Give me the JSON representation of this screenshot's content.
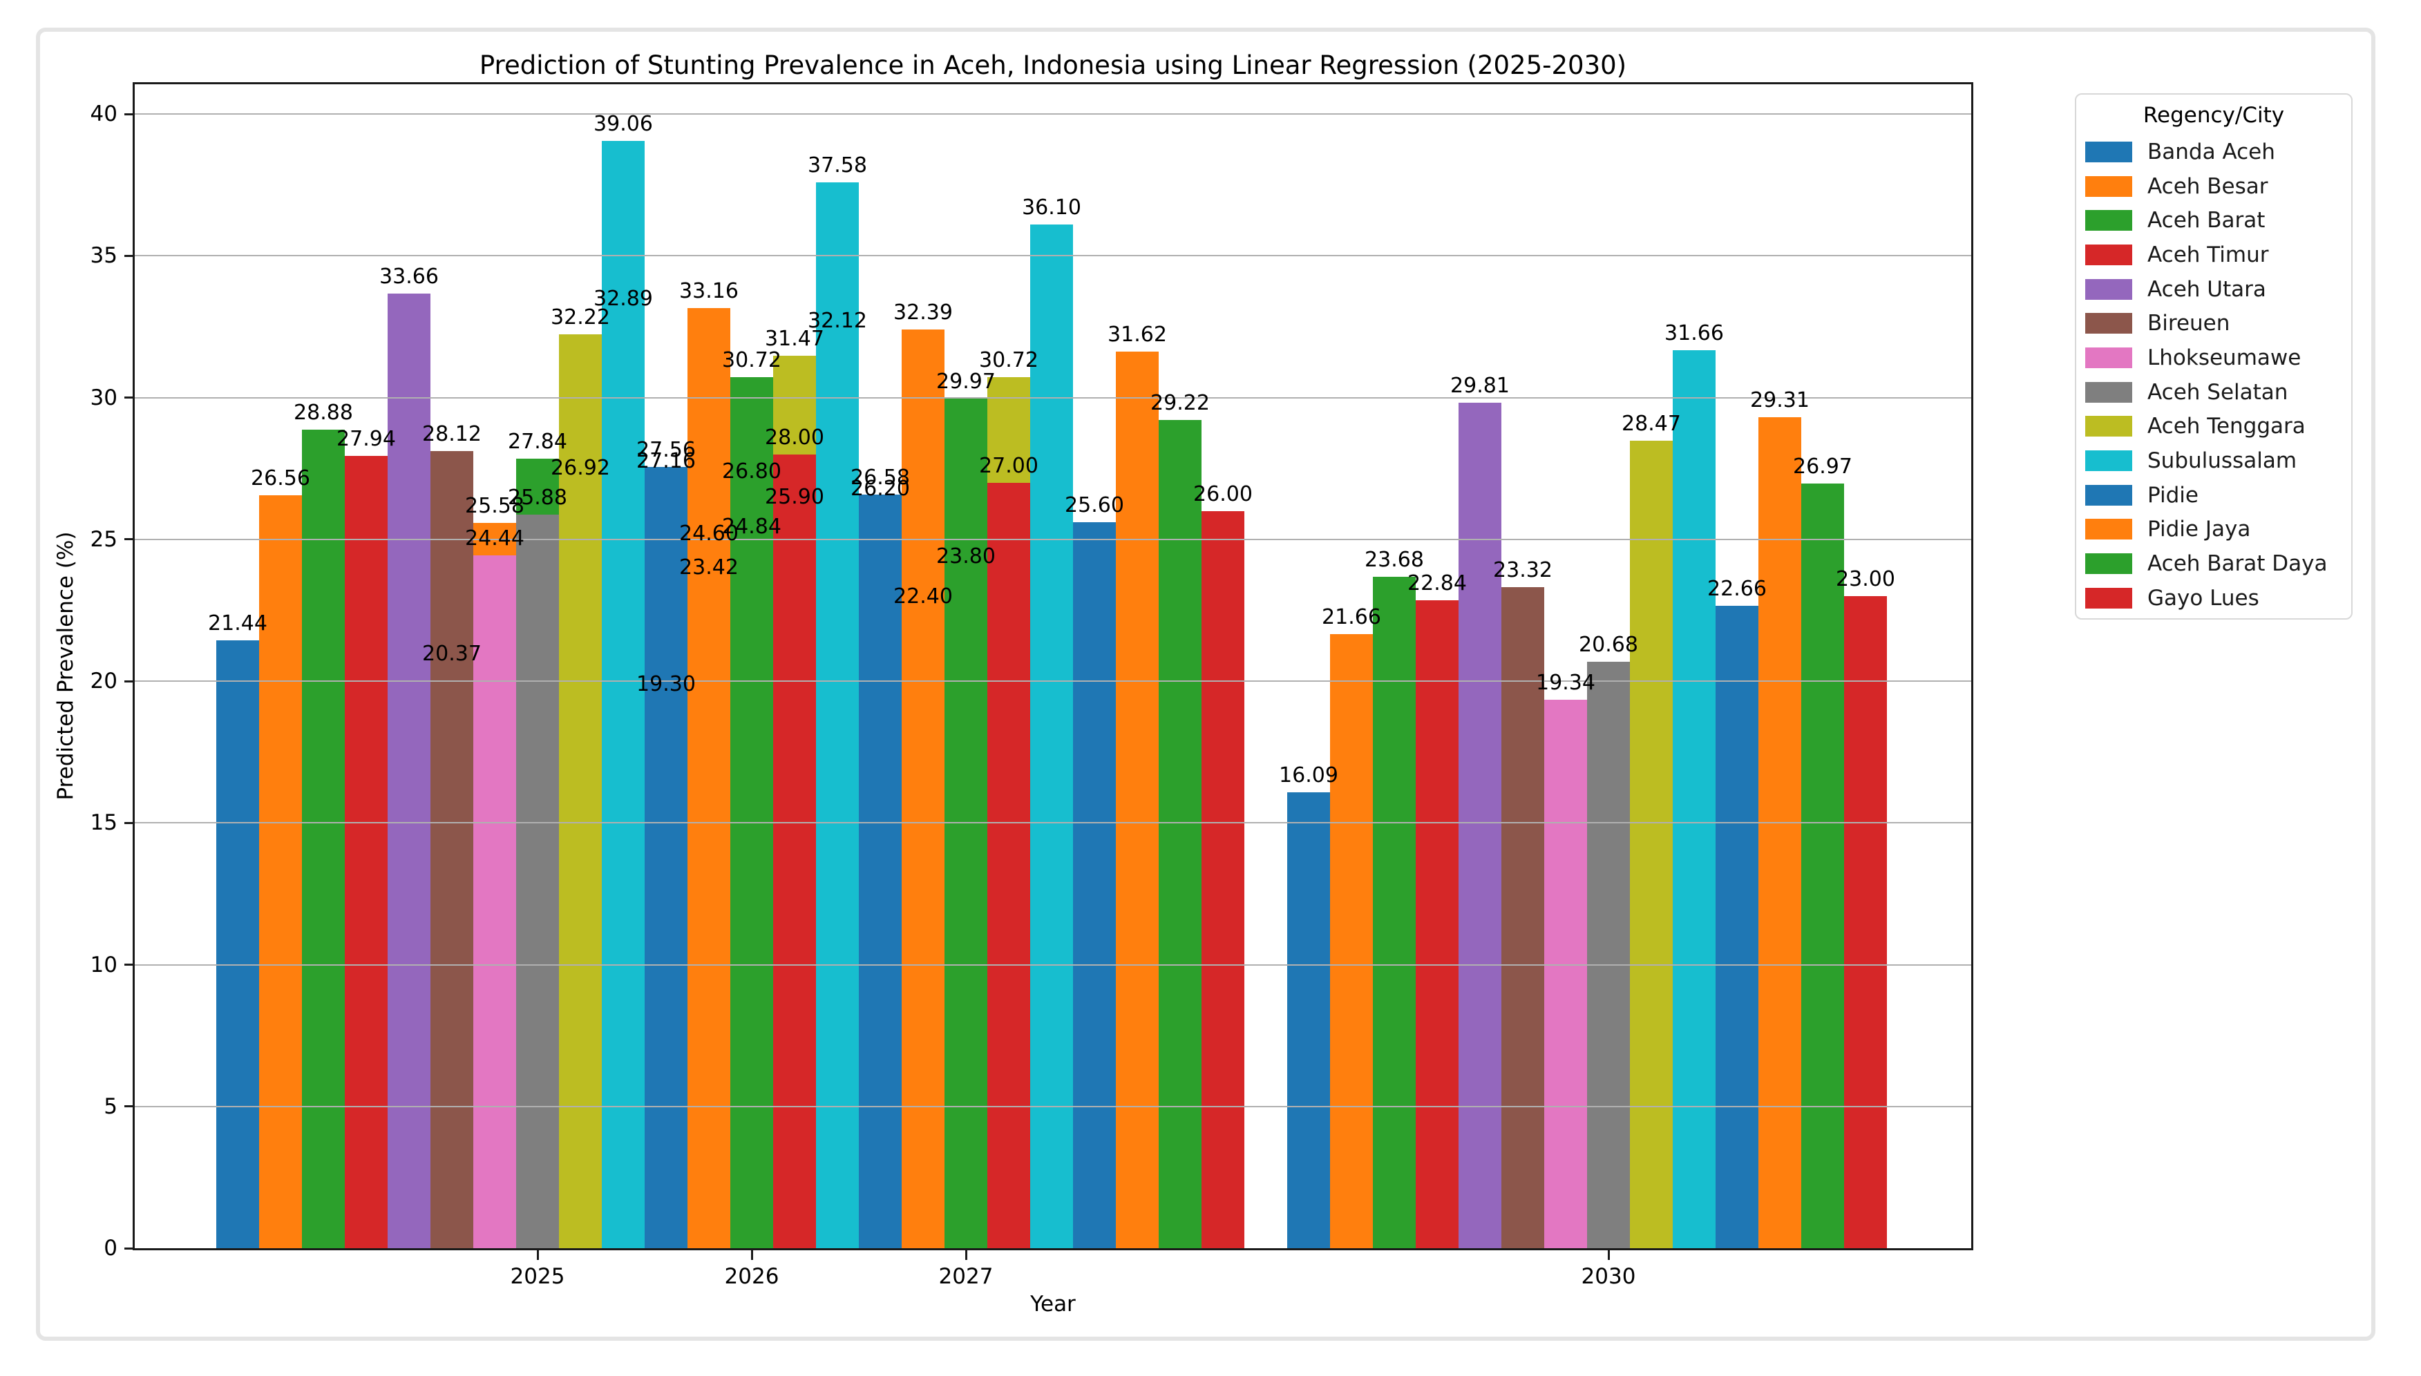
{
  "chart_data": {
    "type": "bar",
    "title": "Prediction of Stunting Prevalence in Aceh, Indonesia using Linear Regression (2025-2030)",
    "xlabel": "Year",
    "ylabel": "Predicted Prevalence (%)",
    "x": [
      2025,
      2026,
      2027,
      2030
    ],
    "xlim": [
      2023.11,
      2031.69
    ],
    "ylim": [
      0,
      41.05
    ],
    "yticks": [
      0,
      5,
      10,
      15,
      20,
      25,
      30,
      35,
      40
    ],
    "grid": "horizontal",
    "grid_color": "#b0b0b0",
    "bar_width": 0.2,
    "series_offset": "(index - 7) * 0.2 years from group year",
    "value_label_decimals": 2,
    "legend": {
      "title": "Regency/City",
      "position": "right"
    },
    "series": [
      {
        "name": "Banda Aceh",
        "color": "#1f77b4",
        "values": [
          21.44,
          20.37,
          19.3,
          16.09
        ]
      },
      {
        "name": "Aceh Besar",
        "color": "#ff7f0e",
        "values": [
          26.56,
          25.58,
          24.6,
          21.66
        ]
      },
      {
        "name": "Aceh Barat",
        "color": "#2ca02c",
        "values": [
          28.88,
          27.84,
          26.8,
          23.68
        ]
      },
      {
        "name": "Aceh Timur",
        "color": "#d62728",
        "values": [
          27.94,
          26.92,
          25.9,
          22.84
        ]
      },
      {
        "name": "Aceh Utara",
        "color": "#9467bd",
        "values": [
          33.66,
          32.89,
          32.12,
          29.81
        ]
      },
      {
        "name": "Bireuen",
        "color": "#8c564b",
        "values": [
          28.12,
          27.16,
          26.2,
          23.32
        ]
      },
      {
        "name": "Lhokseumawe",
        "color": "#e377c2",
        "values": [
          24.44,
          23.42,
          22.4,
          19.34
        ]
      },
      {
        "name": "Aceh Selatan",
        "color": "#7f7f7f",
        "values": [
          25.88,
          24.84,
          23.8,
          20.68
        ]
      },
      {
        "name": "Aceh Tenggara",
        "color": "#bcbd22",
        "values": [
          32.22,
          31.47,
          30.72,
          28.47
        ]
      },
      {
        "name": "Subulussalam",
        "color": "#17becf",
        "values": [
          39.06,
          37.58,
          36.1,
          31.66
        ]
      },
      {
        "name": "Pidie",
        "color": "#1f77b4",
        "values": [
          27.56,
          26.58,
          25.6,
          22.66
        ]
      },
      {
        "name": "Pidie Jaya",
        "color": "#ff7f0e",
        "values": [
          33.16,
          32.39,
          31.62,
          29.31
        ]
      },
      {
        "name": "Aceh Barat Daya",
        "color": "#2ca02c",
        "values": [
          30.72,
          29.97,
          29.22,
          26.97
        ]
      },
      {
        "name": "Gayo Lues",
        "color": "#d62728",
        "values": [
          28.0,
          27.0,
          26.0,
          23.0
        ]
      }
    ]
  }
}
